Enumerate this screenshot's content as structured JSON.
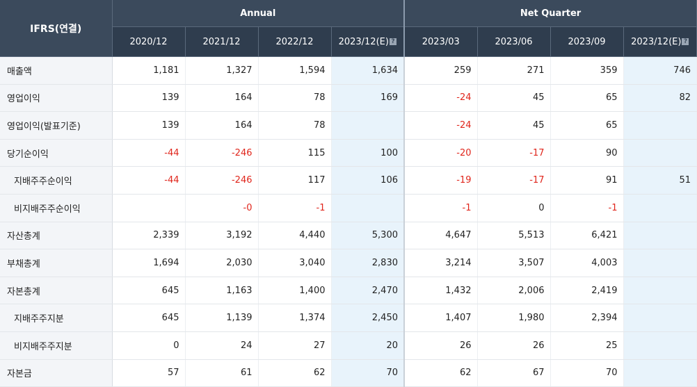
{
  "table": {
    "corner_label": "IFRS(연결)",
    "groups": [
      {
        "label": "Annual"
      },
      {
        "label": "Net Quarter"
      }
    ],
    "periods": [
      {
        "label": "2020/12",
        "estimate": false
      },
      {
        "label": "2021/12",
        "estimate": false
      },
      {
        "label": "2022/12",
        "estimate": false
      },
      {
        "label": "2023/12(E)",
        "estimate": true
      },
      {
        "label": "2023/03",
        "estimate": false
      },
      {
        "label": "2023/06",
        "estimate": false
      },
      {
        "label": "2023/09",
        "estimate": false
      },
      {
        "label": "2023/12(E)",
        "estimate": true
      }
    ],
    "estimate_icon": "question-icon",
    "colors": {
      "header_bg": "#3b4a5c",
      "estimate_bg": "#e8f3fb",
      "negative": "#e0251b"
    },
    "rows": [
      {
        "label": "매출액",
        "indent": false,
        "values": [
          "1,181",
          "1,327",
          "1,594",
          "1,634",
          "259",
          "271",
          "359",
          "746"
        ]
      },
      {
        "label": "영업이익",
        "indent": false,
        "values": [
          "139",
          "164",
          "78",
          "169",
          "-24",
          "45",
          "65",
          "82"
        ]
      },
      {
        "label": "영업이익(발표기준)",
        "indent": false,
        "values": [
          "139",
          "164",
          "78",
          "",
          "-24",
          "45",
          "65",
          ""
        ]
      },
      {
        "label": "당기순이익",
        "indent": false,
        "values": [
          "-44",
          "-246",
          "115",
          "100",
          "-20",
          "-17",
          "90",
          ""
        ]
      },
      {
        "label": "지배주주순이익",
        "indent": true,
        "values": [
          "-44",
          "-246",
          "117",
          "106",
          "-19",
          "-17",
          "91",
          "51"
        ]
      },
      {
        "label": "비지배주주순이익",
        "indent": true,
        "values": [
          "",
          "-0",
          "-1",
          "",
          "-1",
          "0",
          "-1",
          ""
        ]
      },
      {
        "label": "자산총계",
        "indent": false,
        "values": [
          "2,339",
          "3,192",
          "4,440",
          "5,300",
          "4,647",
          "5,513",
          "6,421",
          ""
        ]
      },
      {
        "label": "부채총계",
        "indent": false,
        "values": [
          "1,694",
          "2,030",
          "3,040",
          "2,830",
          "3,214",
          "3,507",
          "4,003",
          ""
        ]
      },
      {
        "label": "자본총계",
        "indent": false,
        "values": [
          "645",
          "1,163",
          "1,400",
          "2,470",
          "1,432",
          "2,006",
          "2,419",
          ""
        ]
      },
      {
        "label": "지배주주지분",
        "indent": true,
        "values": [
          "645",
          "1,139",
          "1,374",
          "2,450",
          "1,407",
          "1,980",
          "2,394",
          ""
        ]
      },
      {
        "label": "비지배주주지분",
        "indent": true,
        "values": [
          "0",
          "24",
          "27",
          "20",
          "26",
          "26",
          "25",
          ""
        ]
      },
      {
        "label": "자본금",
        "indent": false,
        "values": [
          "57",
          "61",
          "62",
          "70",
          "62",
          "67",
          "70",
          ""
        ]
      }
    ]
  }
}
